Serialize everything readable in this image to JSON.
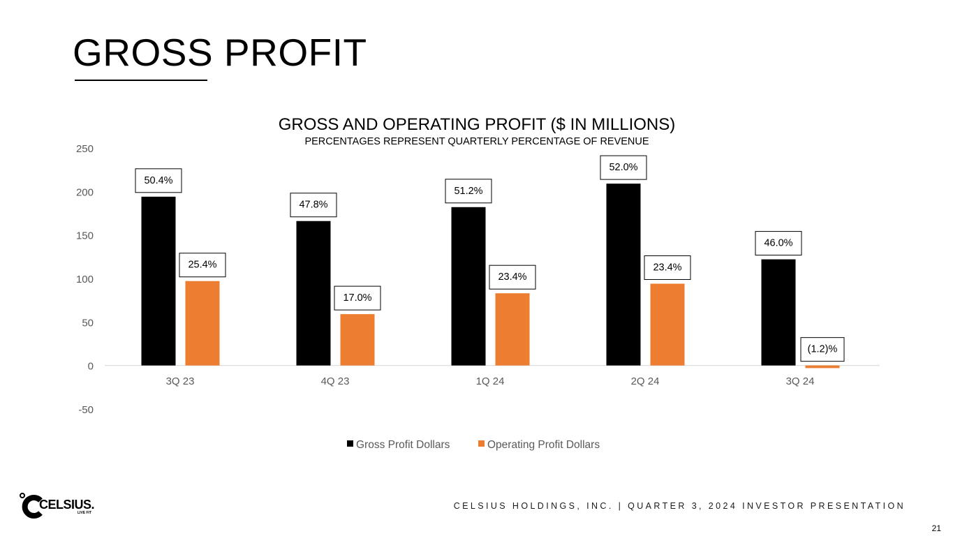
{
  "slide": {
    "title": "GROSS PROFIT",
    "footer": "CELSIUS HOLDINGS, INC. | QUARTER 3, 2024 INVESTOR PRESENTATION",
    "page_number": "21"
  },
  "logo": {
    "name": "CELSIUS.",
    "tagline": "LIVE FIT"
  },
  "chart_data": {
    "type": "bar",
    "title": "GROSS AND OPERATING PROFIT ($ IN MILLIONS)",
    "subtitle": "PERCENTAGES REPRESENT QUARTERLY PERCENTAGE OF REVENUE",
    "categories": [
      "3Q 23",
      "4Q 23",
      "1Q 24",
      "2Q 24",
      "3Q 24"
    ],
    "ylim": [
      -50,
      250
    ],
    "yticks": [
      "250",
      "200",
      "150",
      "100",
      "50",
      "0",
      "-50"
    ],
    "ytick_values": [
      250,
      200,
      150,
      100,
      50,
      0,
      -50
    ],
    "grid": false,
    "legend_position": "bottom",
    "series": [
      {
        "name": "Gross Profit Dollars",
        "color": "#000000",
        "values": [
          194,
          166,
          182,
          209,
          122
        ],
        "labels": [
          "50.4%",
          "47.8%",
          "51.2%",
          "52.0%",
          "46.0%"
        ]
      },
      {
        "name": "Operating Profit Dollars",
        "color": "#ED7D31",
        "values": [
          97,
          59,
          83,
          94,
          -3
        ],
        "labels": [
          "25.4%",
          "17.0%",
          "23.4%",
          "23.4%",
          "(1.2)%"
        ]
      }
    ]
  }
}
